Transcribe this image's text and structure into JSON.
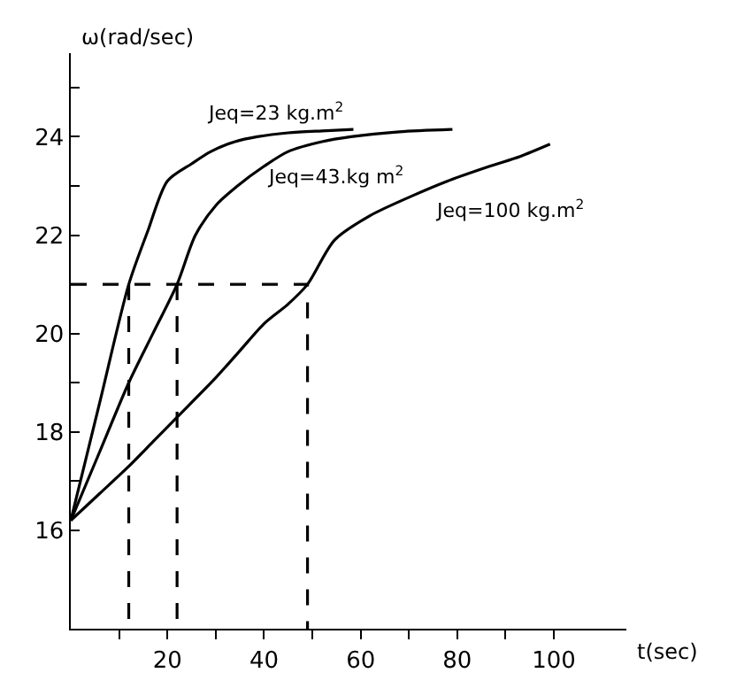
{
  "chart_data": {
    "type": "line",
    "xlabel": "t(sec)",
    "ylabel": "ω(rad/sec)",
    "xlim": [
      0,
      115
    ],
    "ylim": [
      14,
      25.7
    ],
    "xticks": [
      {
        "value": 10,
        "label": null
      },
      20,
      {
        "value": 30,
        "label": null
      },
      40,
      {
        "value": 50,
        "label": null
      },
      60,
      {
        "value": 70,
        "label": null
      },
      80,
      {
        "value": 90,
        "label": null
      },
      100
    ],
    "yticks": [
      16,
      {
        "value": 17,
        "label": null
      },
      18,
      {
        "value": 19,
        "label": null
      },
      20,
      {
        "value": 21,
        "label": null
      },
      22,
      {
        "value": 23,
        "label": null
      },
      24,
      {
        "value": 25,
        "label": null
      }
    ],
    "legend": false,
    "marker": "none",
    "series": [
      {
        "name": "Jeq=23 kg.m$^{2}$",
        "color": "#000000",
        "line_style": "solid",
        "x": [
          0,
          6,
          12,
          16,
          20,
          25,
          29,
          34,
          38.6,
          45,
          52,
          58.5
        ],
        "values": [
          16.2,
          18.6,
          21,
          22.1,
          23.1,
          23.45,
          23.7,
          23.9,
          24.0,
          24.08,
          24.12,
          24.15
        ]
      },
      {
        "name": "Jeq=43.kg m$^{2}$",
        "color": "#000000",
        "line_style": "solid",
        "x": [
          0,
          6,
          12,
          17,
          22,
          25.8,
          30,
          34.5,
          40,
          45,
          52,
          58,
          68,
          79
        ],
        "values": [
          16.2,
          17.6,
          19.0,
          20.0,
          21,
          22,
          22.6,
          23.0,
          23.4,
          23.7,
          23.9,
          24.0,
          24.1,
          24.15
        ]
      },
      {
        "name": "Jeq=100 kg.m$^{2}$",
        "color": "#000000",
        "line_style": "solid",
        "x": [
          0,
          6,
          12,
          17,
          22,
          30,
          35,
          40,
          45,
          49,
          54.6,
          62,
          70.7,
          78,
          86.7,
          93,
          99.2
        ],
        "values": [
          16.2,
          16.75,
          17.3,
          17.8,
          18.3,
          19.1,
          19.65,
          20.2,
          20.6,
          21,
          21.9,
          22.4,
          22.8,
          23.1,
          23.4,
          23.6,
          23.85
        ]
      },
      {
        "color": "#000000",
        "line_style": "dashed",
        "x": [
          0,
          49,
          49
        ],
        "values": [
          21,
          21,
          14
        ]
      },
      {
        "color": "#000000",
        "line_style": "dashed",
        "x": [
          12,
          12
        ],
        "values": [
          21,
          14
        ]
      },
      {
        "color": "#000000",
        "line_style": "dashed",
        "x": [
          22,
          22
        ],
        "values": [
          21,
          14
        ]
      }
    ]
  }
}
